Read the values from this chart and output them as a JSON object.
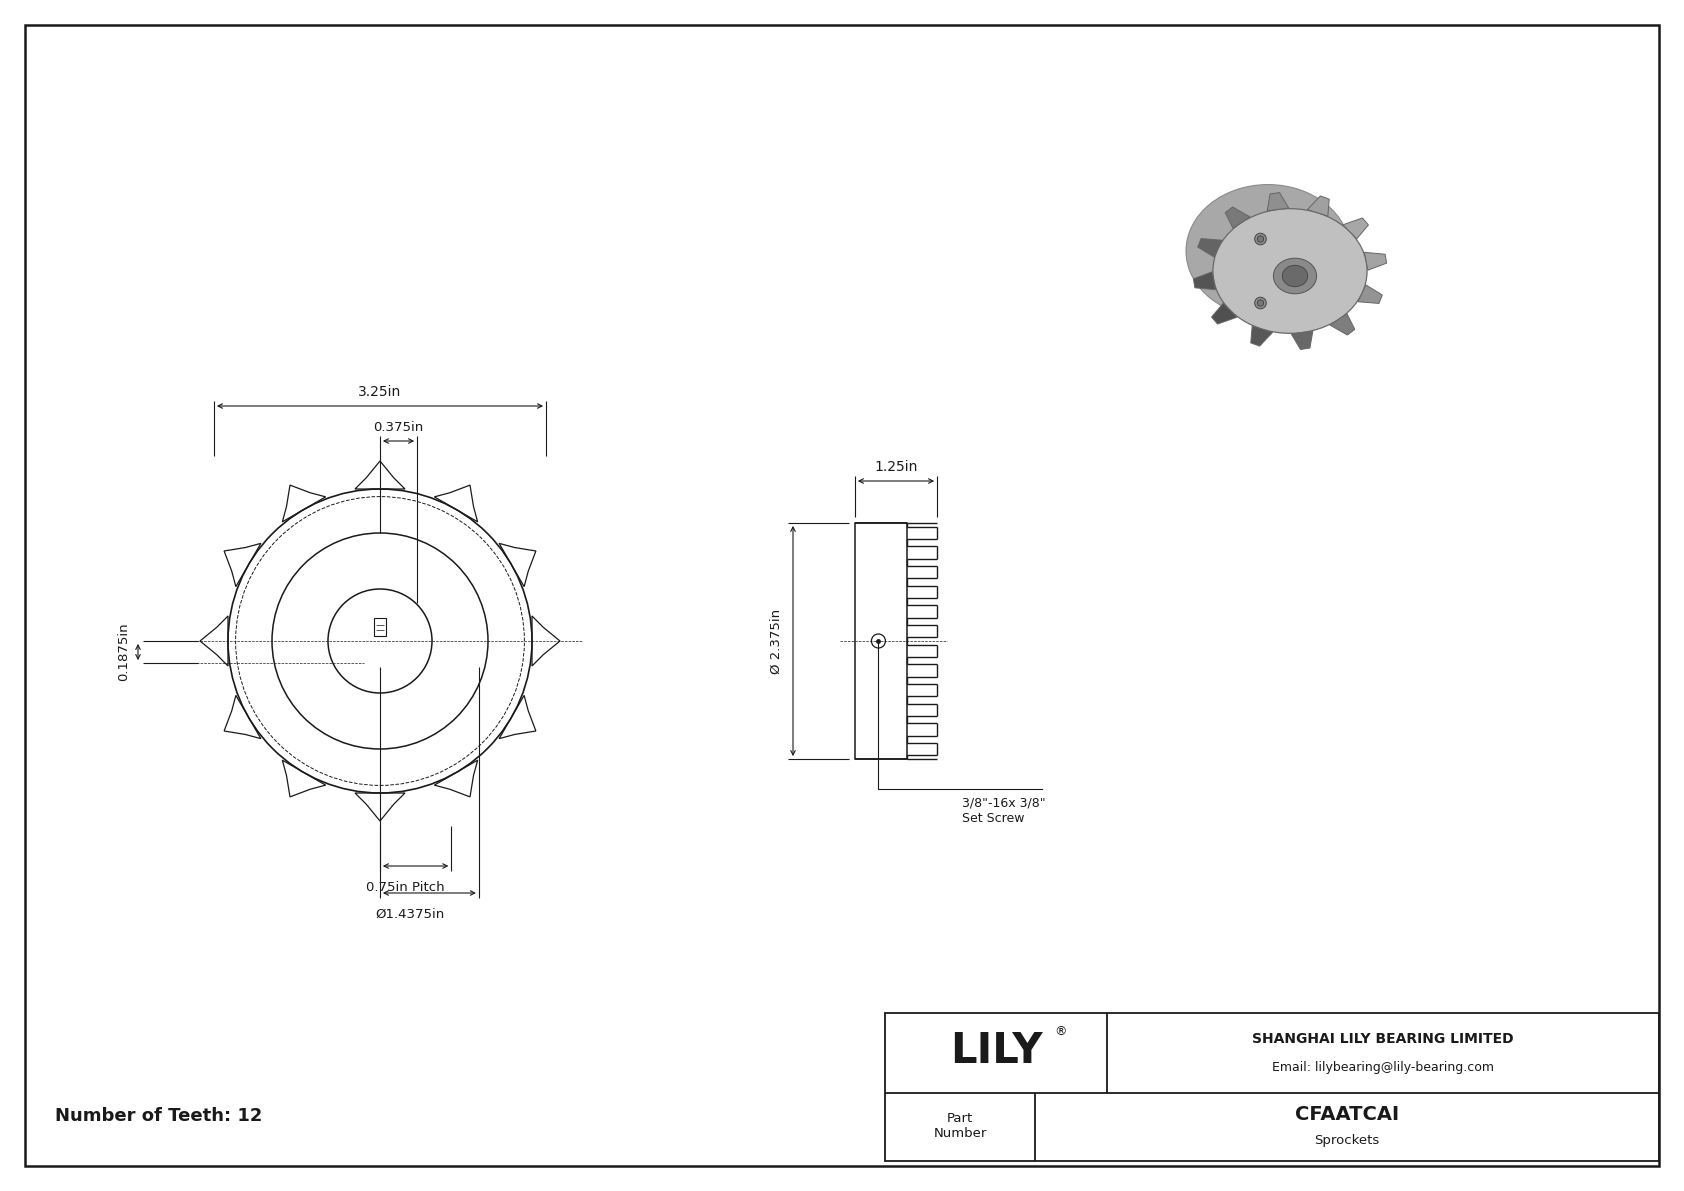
{
  "bg_color": "#ffffff",
  "line_color": "#1a1a1a",
  "dim_color": "#1a1a1a",
  "part_number": "CFAATCAI",
  "part_type": "Sprockets",
  "company": "SHANGHAI LILY BEARING LIMITED",
  "email": "Email: lilybearing@lily-bearing.com",
  "teeth": 12,
  "dim_3_25": "3.25in",
  "dim_0_375": "0.375in",
  "dim_0_1875": "0.1875in",
  "dim_pitch": "0.75in Pitch",
  "dim_bore": "Ø1.4375in",
  "dim_1_25": "1.25in",
  "dim_2_375": "Ø 2.375in",
  "set_screw": "3/8\"-16x 3/8\"\nSet Screw",
  "num_teeth_label": "Number of Teeth: 12"
}
